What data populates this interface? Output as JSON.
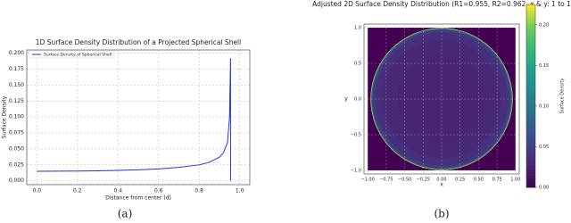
{
  "chart_data": [
    {
      "type": "line",
      "title": "1D Surface Density Distribution of a Projected Spherical Shell",
      "x_label": "Distance from center (d)",
      "y_label": "Surface Density",
      "x": [
        0,
        0.1,
        0.2,
        0.3,
        0.4,
        0.5,
        0.6,
        0.7,
        0.8,
        0.85,
        0.9,
        0.92,
        0.94,
        0.95,
        0.955,
        0.955
      ],
      "series": [
        {
          "name": "Surface Density of Spherical Shell",
          "color": "#2233dd",
          "values": [
            0.015,
            0.0151,
            0.0153,
            0.0157,
            0.0164,
            0.0173,
            0.0187,
            0.021,
            0.025,
            0.029,
            0.037,
            0.044,
            0.06,
            0.1,
            0.192,
            0
          ]
        }
      ],
      "xlim": [
        -0.05,
        1.05
      ],
      "xticks": [
        {
          "value": 0,
          "label": "0.0"
        },
        0.2,
        0.4,
        0.6,
        0.8,
        {
          "value": 1,
          "label": "1.0"
        }
      ],
      "ylim": [
        -0.006,
        0.205
      ],
      "yticks": [
        {
          "value": 0,
          "label": "0.000"
        },
        0.025,
        {
          "value": 0.05,
          "label": "0.050"
        },
        0.075,
        {
          "value": 0.1,
          "label": "0.100"
        },
        0.125,
        {
          "value": 0.15,
          "label": "0.150"
        },
        0.175,
        {
          "value": 0.2,
          "label": "0.200"
        }
      ],
      "grid": true,
      "legend": "upper left",
      "caption": "(a)"
    },
    {
      "type": "heatmap",
      "title": "Adjusted 2D Surface Density Distribution (R1=0.955, R2=0.962, x & y:  1 to 1",
      "x_label": "x",
      "y_label": "y",
      "colorbar_label": "Surface Density",
      "background_value": 0,
      "r": [
        0.962,
        0.955,
        0.94,
        0.9,
        0.8,
        0.6
      ],
      "values": [
        0.22,
        0.1,
        0.045,
        0.035,
        0.03,
        0.027
      ],
      "xlim": [
        -1.05,
        1.05
      ],
      "xticks": [
        {
          "value": -1,
          "label": "−1.00"
        },
        {
          "value": -0.75,
          "label": "−0.75"
        },
        {
          "value": -0.5,
          "label": "−0.50"
        },
        {
          "value": -0.25,
          "label": "−0.25"
        },
        {
          "value": 0,
          "label": "0.00"
        },
        0.25,
        {
          "value": 0.5,
          "label": "0.50"
        },
        0.75,
        {
          "value": 1,
          "label": "1.00"
        }
      ],
      "ylim": [
        -1.05,
        1.05
      ],
      "yticks": [
        {
          "value": -1,
          "label": "−1.0"
        },
        {
          "value": -0.5,
          "label": "−0.5"
        },
        {
          "value": 0,
          "label": "0.0"
        },
        0.5,
        {
          "value": 1,
          "label": "1.0"
        }
      ],
      "zlim": [
        0,
        0.225
      ],
      "zticks": [
        {
          "value": 0,
          "label": "0.00"
        },
        0.05,
        {
          "value": 0.1,
          "label": "0.10"
        },
        0.15,
        {
          "value": 0.2,
          "label": "0.20"
        }
      ],
      "caption": "(b)"
    }
  ]
}
